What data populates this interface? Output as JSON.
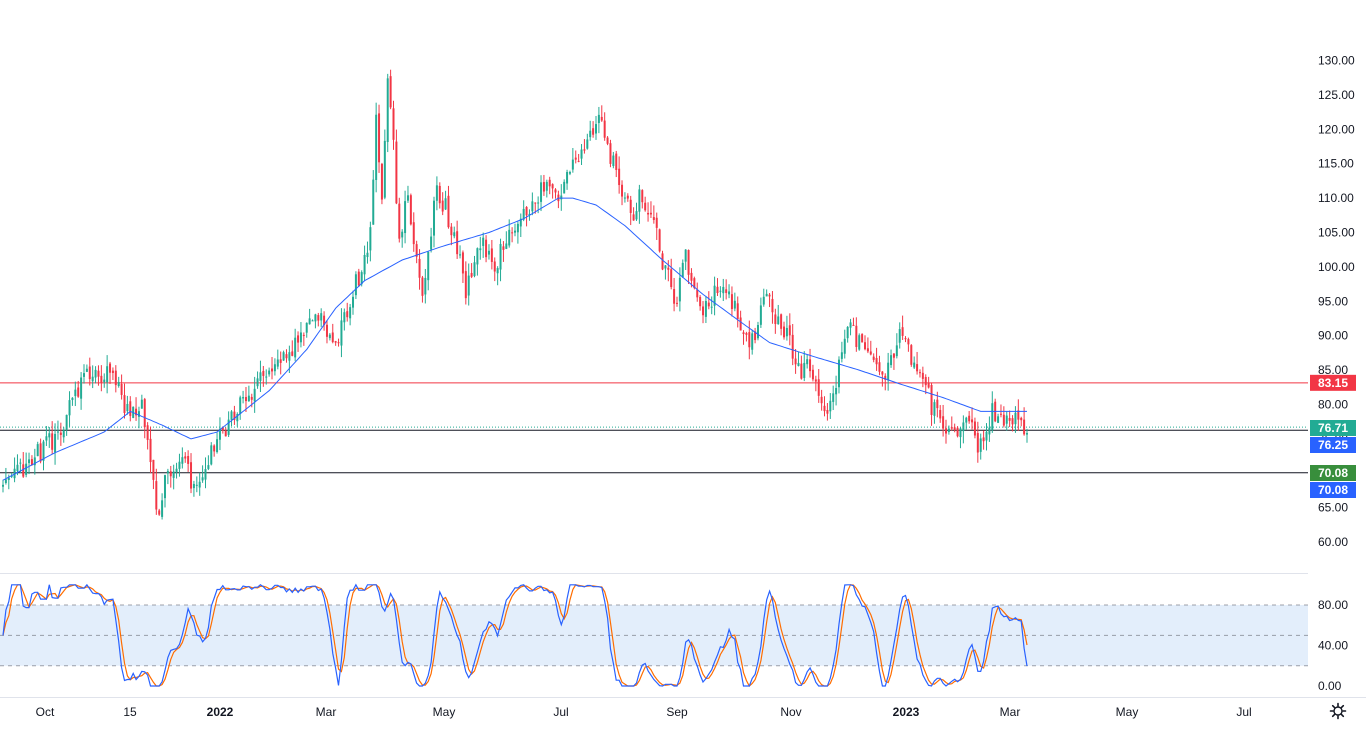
{
  "chart_data": {
    "type": "candlestick",
    "main_pane": {
      "y_ticks": [
        "130.00",
        "125.00",
        "120.00",
        "115.00",
        "110.00",
        "105.00",
        "100.00",
        "95.00",
        "90.00",
        "85.00",
        "80.00",
        "75.00",
        "70.00",
        "65.00",
        "60.00"
      ],
      "ylim": [
        56.5,
        132.5
      ],
      "horizontal_levels": [
        {
          "value": 83.15,
          "label": "83.15",
          "color": "#f23645"
        },
        {
          "value": 76.25,
          "label": "76.25",
          "color": "#131722",
          "badge_color": "#2962ff"
        },
        {
          "value": 70.08,
          "label": "70.08",
          "color": "#131722",
          "badge_color": "#2962ff"
        }
      ],
      "price_badges": [
        {
          "value": 76.71,
          "label": "76.71",
          "color": "#22ab94",
          "dotted": true
        },
        {
          "value": 70.08,
          "label": "70.08",
          "color": "#388e3c",
          "offset": -1
        }
      ],
      "candle_colors": {
        "up": "#22ab94",
        "down": "#f23645"
      },
      "moving_average_color": "#2962ff",
      "candle_count": 355,
      "x_first_candle": 3,
      "x_last_candle": 1027,
      "price_path": [
        [
          0,
          68
        ],
        [
          18,
          75
        ],
        [
          30,
          85
        ],
        [
          40,
          84
        ],
        [
          42,
          79
        ],
        [
          48,
          80
        ],
        [
          50,
          76
        ],
        [
          53,
          64
        ],
        [
          58,
          71
        ],
        [
          63,
          72
        ],
        [
          66,
          68
        ],
        [
          73,
          74
        ],
        [
          80,
          79
        ],
        [
          95,
          86
        ],
        [
          110,
          93
        ],
        [
          115,
          89
        ],
        [
          120,
          95
        ],
        [
          125,
          101
        ],
        [
          127,
          105
        ],
        [
          129,
          123
        ],
        [
          131,
          110
        ],
        [
          133,
          129
        ],
        [
          135,
          117
        ],
        [
          137,
          104
        ],
        [
          140,
          110
        ],
        [
          145,
          96
        ],
        [
          150,
          112
        ],
        [
          155,
          106
        ],
        [
          160,
          97
        ],
        [
          165,
          104
        ],
        [
          170,
          99
        ],
        [
          175,
          106
        ],
        [
          182,
          108
        ],
        [
          187,
          112
        ],
        [
          192,
          110
        ],
        [
          198,
          115
        ],
        [
          203,
          119
        ],
        [
          206,
          123
        ],
        [
          210,
          116
        ],
        [
          213,
          113
        ],
        [
          215,
          110
        ],
        [
          218,
          107
        ],
        [
          220,
          111
        ],
        [
          223,
          108
        ],
        [
          226,
          105
        ],
        [
          228,
          100
        ],
        [
          233,
          95
        ],
        [
          236,
          101
        ],
        [
          242,
          93
        ],
        [
          248,
          98
        ],
        [
          255,
          92
        ],
        [
          259,
          89
        ],
        [
          264,
          97
        ],
        [
          268,
          92
        ],
        [
          272,
          89
        ],
        [
          276,
          85
        ],
        [
          280,
          85
        ],
        [
          284,
          78
        ],
        [
          287,
          81
        ],
        [
          292,
          92
        ],
        [
          296,
          89
        ],
        [
          300,
          86
        ],
        [
          305,
          83
        ],
        [
          310,
          91
        ],
        [
          314,
          87
        ],
        [
          317,
          84
        ],
        [
          321,
          80
        ],
        [
          325,
          78
        ],
        [
          330,
          74
        ],
        [
          335,
          79
        ],
        [
          337,
          73
        ],
        [
          342,
          79
        ],
        [
          345,
          77
        ],
        [
          350,
          78
        ],
        [
          354,
          77
        ]
      ],
      "ma_path": [
        [
          0,
          69
        ],
        [
          18,
          73
        ],
        [
          35,
          76
        ],
        [
          44,
          79
        ],
        [
          55,
          77
        ],
        [
          65,
          75
        ],
        [
          74,
          76
        ],
        [
          80,
          78
        ],
        [
          92,
          82
        ],
        [
          105,
          88
        ],
        [
          115,
          94
        ],
        [
          125,
          98
        ],
        [
          138,
          101
        ],
        [
          152,
          103
        ],
        [
          168,
          105
        ],
        [
          180,
          107
        ],
        [
          188,
          109
        ],
        [
          192,
          110
        ],
        [
          197,
          110
        ],
        [
          205,
          109
        ],
        [
          215,
          106
        ],
        [
          228,
          101
        ],
        [
          242,
          96
        ],
        [
          255,
          92
        ],
        [
          265,
          89
        ],
        [
          280,
          87
        ],
        [
          296,
          85
        ],
        [
          310,
          83
        ],
        [
          325,
          81
        ],
        [
          338,
          79
        ],
        [
          348,
          79
        ],
        [
          354,
          79
        ]
      ]
    },
    "stochastic_pane": {
      "y_ticks": [
        "80.00",
        "40.00",
        "0.00"
      ],
      "ylim": [
        -5,
        100
      ],
      "band": [
        20,
        80
      ],
      "midline": 50,
      "k_color": "#2962ff",
      "d_color": "#ff6d00",
      "band_color": "#e3eefb"
    },
    "x_ticks": [
      {
        "label": "Oct",
        "bold": false
      },
      {
        "label": "15",
        "bold": false
      },
      {
        "label": "2022",
        "bold": true
      },
      {
        "label": "Mar",
        "bold": false
      },
      {
        "label": "May",
        "bold": false
      },
      {
        "label": "Jul",
        "bold": false
      },
      {
        "label": "Sep",
        "bold": false
      },
      {
        "label": "Nov",
        "bold": false
      },
      {
        "label": "2023",
        "bold": true
      },
      {
        "label": "Mar",
        "bold": false
      },
      {
        "label": "May",
        "bold": false
      },
      {
        "label": "Jul",
        "bold": false
      }
    ],
    "settings_icon": "gear-icon"
  }
}
